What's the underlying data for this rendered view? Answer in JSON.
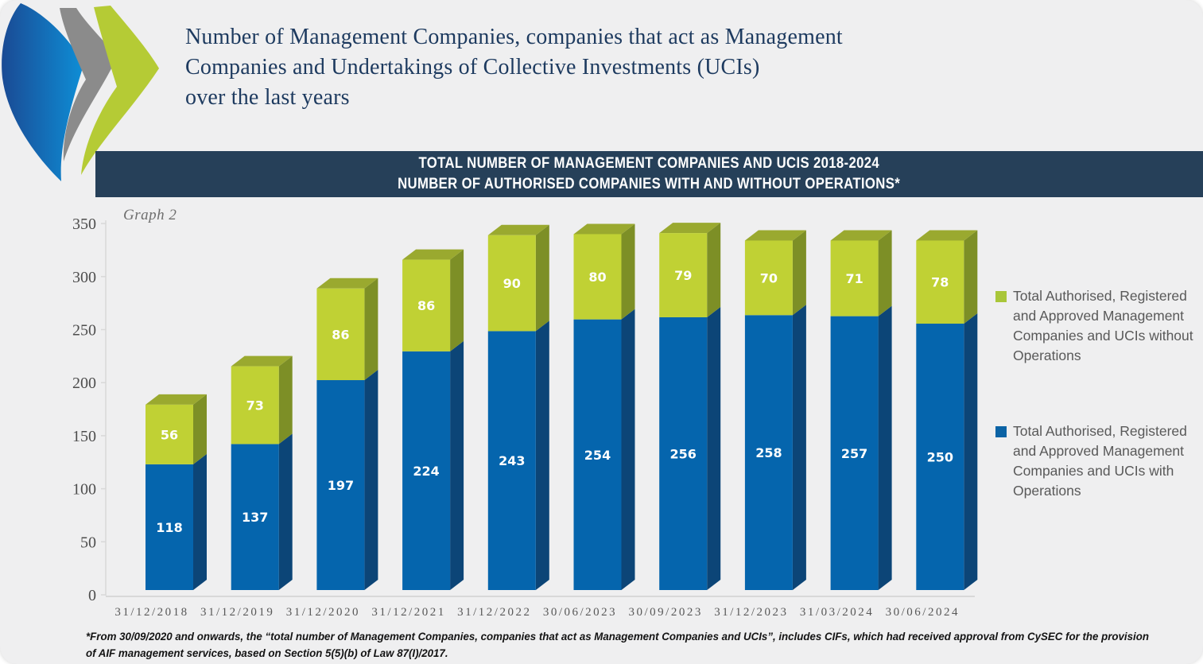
{
  "page": {
    "background": "#efeff0"
  },
  "logo": {
    "description": "three-chevron swoosh logo",
    "colors": {
      "blue_start": "#1a4a94",
      "blue_end": "#0e8ed6",
      "gray": "#8b8b8b",
      "green": "#b5cb35"
    }
  },
  "header": {
    "title_lines": [
      "Number of Management Companies, companies that act as Management",
      "Companies and Undertakings of Collective Investments (UCIs)",
      "over the last years"
    ],
    "color": "#1d3a5f"
  },
  "banner": {
    "line1": "TOTAL NUMBER OF MANAGEMENT COMPANIES AND UCIS 2018-2024",
    "line2": "NUMBER OF AUTHORISED COMPANIES WITH AND WITHOUT OPERATIONS*",
    "background": "#264059",
    "text_color": "#ffffff"
  },
  "chart_data": {
    "type": "bar",
    "stacked": true,
    "graph_label": "Graph 2",
    "title": "TOTAL NUMBER OF MANAGEMENT COMPANIES AND UCIS 2018-2024 — NUMBER OF AUTHORISED COMPANIES WITH AND WITHOUT OPERATIONS*",
    "categories": [
      "31/12/2018",
      "31/12/2019",
      "31/12/2020",
      "31/12/2021",
      "31/12/2022",
      "30/06/2023",
      "30/09/2023",
      "31/12/2023",
      "31/03/2024",
      "30/06/2024"
    ],
    "series": [
      {
        "name": "Total Authorised, Registered and Approved Management Companies and UCIs with Operations",
        "values": [
          118,
          137,
          197,
          224,
          243,
          254,
          256,
          258,
          257,
          250
        ],
        "front_color": "#0565ad",
        "side_color": "#0c4577"
      },
      {
        "name": "Total Authorised, Registered and Approved Management Companies and UCIs without Operations",
        "values": [
          56,
          73,
          86,
          86,
          90,
          80,
          79,
          70,
          71,
          78
        ],
        "front_color": "#c0d134",
        "side_color": "#7d8f26",
        "top_color": "#9aa92f"
      }
    ],
    "ylim": [
      0,
      350
    ],
    "yticks": [
      0,
      50,
      100,
      150,
      200,
      250,
      300,
      350
    ],
    "xlabel": "",
    "ylabel": "",
    "grid": false,
    "legend_position": "right",
    "axis_color": "#d8d8d8",
    "tick_label_color": "#4d4d4d"
  },
  "legend": {
    "items": [
      {
        "label": "Total Authorised, Registered and Approved Management Companies and UCIs without Operations",
        "color": "#a9c639"
      },
      {
        "label": "Total Authorised, Registered and Approved Management Companies and UCIs with Operations",
        "color": "#0b63a5"
      }
    ]
  },
  "footnote": {
    "lines": [
      "*From 30/09/2020 and onwards, the “total number of Management Companies, companies that act as Management Companies and UCIs”, includes CIFs, which had received approval from CySEC for the provision",
      "of AIF management services, based on Section 5(5)(b) of Law 87(I)/2017."
    ]
  }
}
